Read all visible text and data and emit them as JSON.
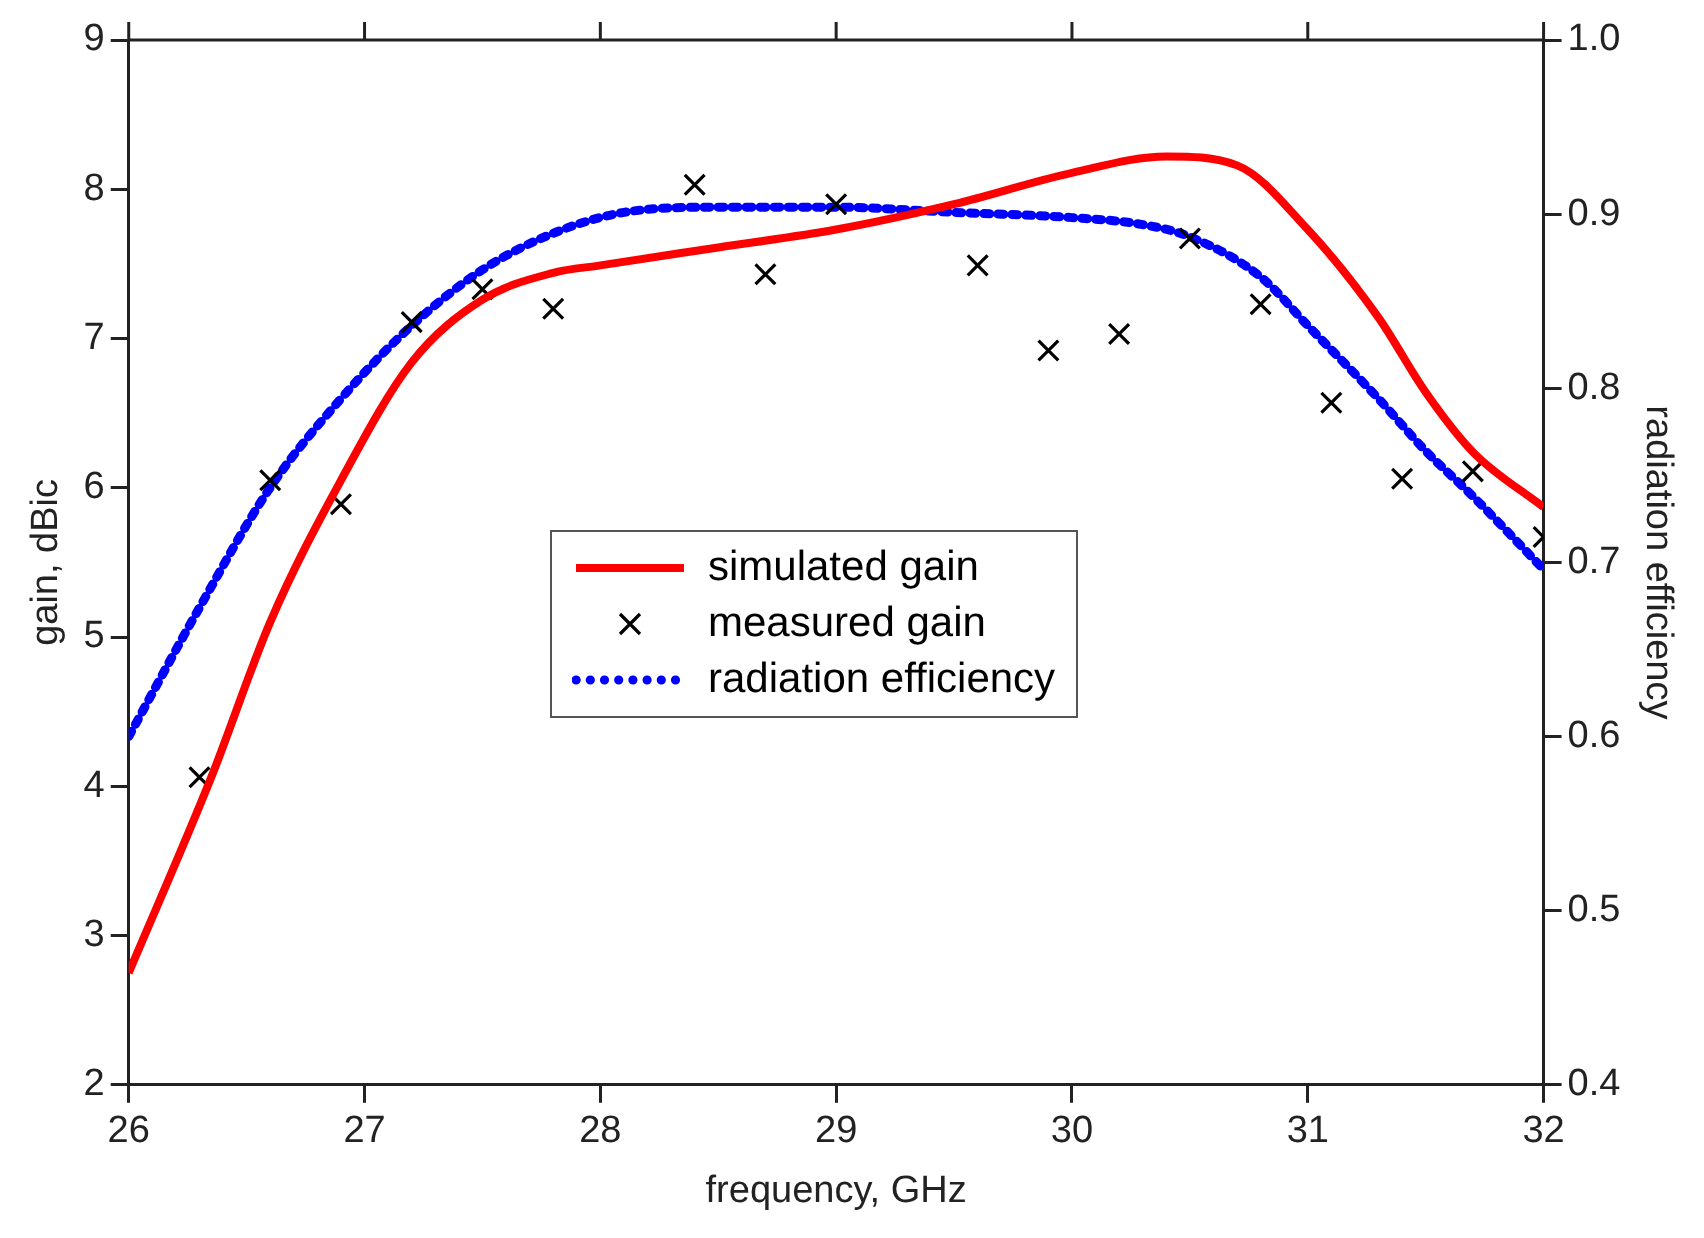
{
  "chart_data": {
    "type": "line",
    "xlabel": "frequency, GHz",
    "ylabel": "gain, dBic",
    "y2label": "radiation efficiency",
    "xlim": [
      26,
      32
    ],
    "xticks": [
      26,
      27,
      28,
      29,
      30,
      31,
      32
    ],
    "ylim": [
      2,
      9
    ],
    "yticks": [
      2,
      3,
      4,
      5,
      6,
      7,
      8,
      9
    ],
    "y2lim": [
      0.4,
      1.0
    ],
    "y2ticks": [
      0.4,
      0.5,
      0.6,
      0.7,
      0.8,
      0.9,
      {
        "value": 1.0,
        "label": "1.0"
      }
    ],
    "legend": "center",
    "grid": false,
    "series": [
      {
        "name": "simulated gain",
        "color": "#ff0000",
        "line_style": "solid",
        "marker": "none",
        "x": [
          26,
          26.35,
          26.6,
          26.9,
          27.2,
          27.5,
          27.8,
          28,
          28.5,
          29,
          29.5,
          30,
          30.4,
          30.7,
          31,
          31.3,
          31.5,
          31.7,
          32
        ],
        "values": [
          2.75,
          4.06,
          5.1,
          6.05,
          6.84,
          7.26,
          7.44,
          7.49,
          7.61,
          7.73,
          7.9,
          8.11,
          8.22,
          8.16,
          7.73,
          7.14,
          6.64,
          6.24,
          5.87
        ]
      },
      {
        "name": "measured gain",
        "type": "scatter",
        "color": "#000000",
        "marker": "cross",
        "x": [
          26.3,
          26.6,
          26.9,
          27.2,
          27.5,
          27.8,
          28.4,
          28.7,
          29,
          29.6,
          29.9,
          30.2,
          30.5,
          30.8,
          31.1,
          31.4,
          31.7,
          32
        ],
        "values": [
          4.06,
          6.05,
          5.89,
          7.11,
          7.33,
          7.2,
          8.03,
          7.43,
          7.9,
          7.49,
          6.92,
          7.03,
          7.67,
          7.23,
          6.57,
          6.06,
          6.11,
          5.67
        ]
      },
      {
        "name": "radiation efficiency",
        "axis": "y2",
        "color": "#0000ff",
        "line_style": "dotted",
        "marker": "none",
        "x": [
          26,
          26.3,
          26.6,
          26.9,
          27.2,
          27.5,
          27.8,
          28.1,
          28.5,
          29,
          29.5,
          30,
          30.3,
          30.5,
          30.8,
          31,
          31.3,
          31.5,
          31.7,
          32
        ],
        "values": [
          0.6,
          0.674,
          0.743,
          0.794,
          0.836,
          0.868,
          0.889,
          0.901,
          0.904,
          0.904,
          0.901,
          0.898,
          0.894,
          0.887,
          0.864,
          0.836,
          0.794,
          0.764,
          0.738,
          0.696
        ]
      }
    ]
  }
}
